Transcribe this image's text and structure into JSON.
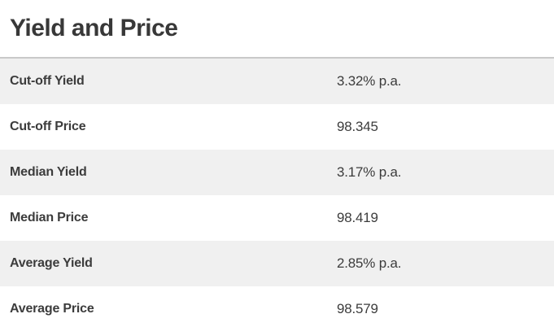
{
  "page": {
    "title": "Yield and Price"
  },
  "table": {
    "rows": [
      {
        "label": "Cut-off Yield",
        "value": "3.32% p.a."
      },
      {
        "label": "Cut-off Price",
        "value": "98.345"
      },
      {
        "label": "Median Yield",
        "value": "3.17% p.a."
      },
      {
        "label": "Median Price",
        "value": "98.419"
      },
      {
        "label": "Average Yield",
        "value": "2.85% p.a."
      },
      {
        "label": "Average Price",
        "value": "98.579"
      }
    ]
  },
  "colors": {
    "zebra_row": "#f0f0f0",
    "table_top_border": "#c9c9c9",
    "text": "#3c3c3c",
    "title": "#383838"
  }
}
